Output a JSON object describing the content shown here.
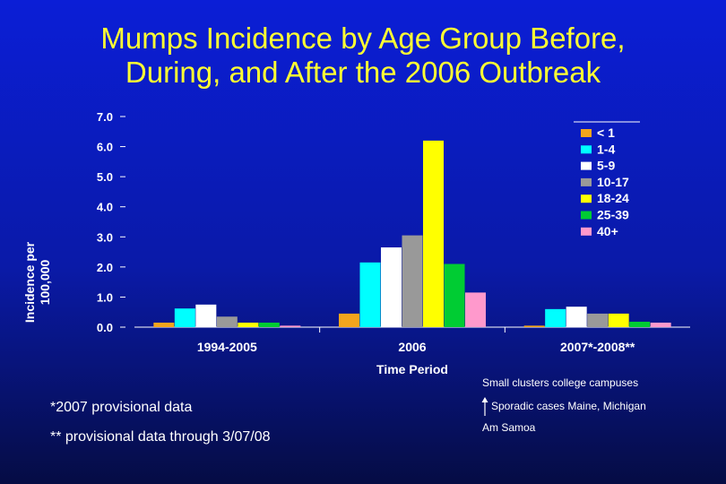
{
  "title_line1": "Mumps Incidence by Age Group Before,",
  "title_line2": "During, and After the 2006 Outbreak",
  "footnotes": {
    "provisional_2007": "*2007 provisional data",
    "provisional_through": "** provisional data through 3/07/08"
  },
  "annotations": {
    "small_clusters": "Small clusters college campuses",
    "sporadic": "Sporadic cases Maine, Michigan",
    "am_samoa": "Am Samoa"
  },
  "chart_data": {
    "type": "bar",
    "title": "Mumps Incidence by Age Group Before, During, and After the 2006 Outbreak",
    "xlabel": "Time Period",
    "ylabel": "Incidence per 100,000",
    "ylim": [
      0,
      7.0
    ],
    "yticks": [
      "0.0",
      "1.0",
      "2.0",
      "3.0",
      "4.0",
      "5.0",
      "6.0",
      "7.0"
    ],
    "grid": false,
    "legend_position": "top-right",
    "categories": [
      "1994-2005",
      "2006",
      "2007*-2008**"
    ],
    "series": [
      {
        "name": "< 1",
        "color": "#f2a51d",
        "values": [
          0.15,
          0.45,
          0.05
        ]
      },
      {
        "name": "1-4",
        "color": "#00ffff",
        "values": [
          0.62,
          2.15,
          0.6
        ]
      },
      {
        "name": "5-9",
        "color": "#ffffff",
        "values": [
          0.75,
          2.65,
          0.68
        ]
      },
      {
        "name": "10-17",
        "color": "#999999",
        "values": [
          0.35,
          3.05,
          0.45
        ]
      },
      {
        "name": "18-24",
        "color": "#ffff00",
        "values": [
          0.15,
          6.2,
          0.45
        ]
      },
      {
        "name": "25-39",
        "color": "#00cc33",
        "values": [
          0.15,
          2.1,
          0.18
        ]
      },
      {
        "name": "40+",
        "color": "#ff99cc",
        "values": [
          0.05,
          1.15,
          0.15
        ]
      }
    ]
  }
}
